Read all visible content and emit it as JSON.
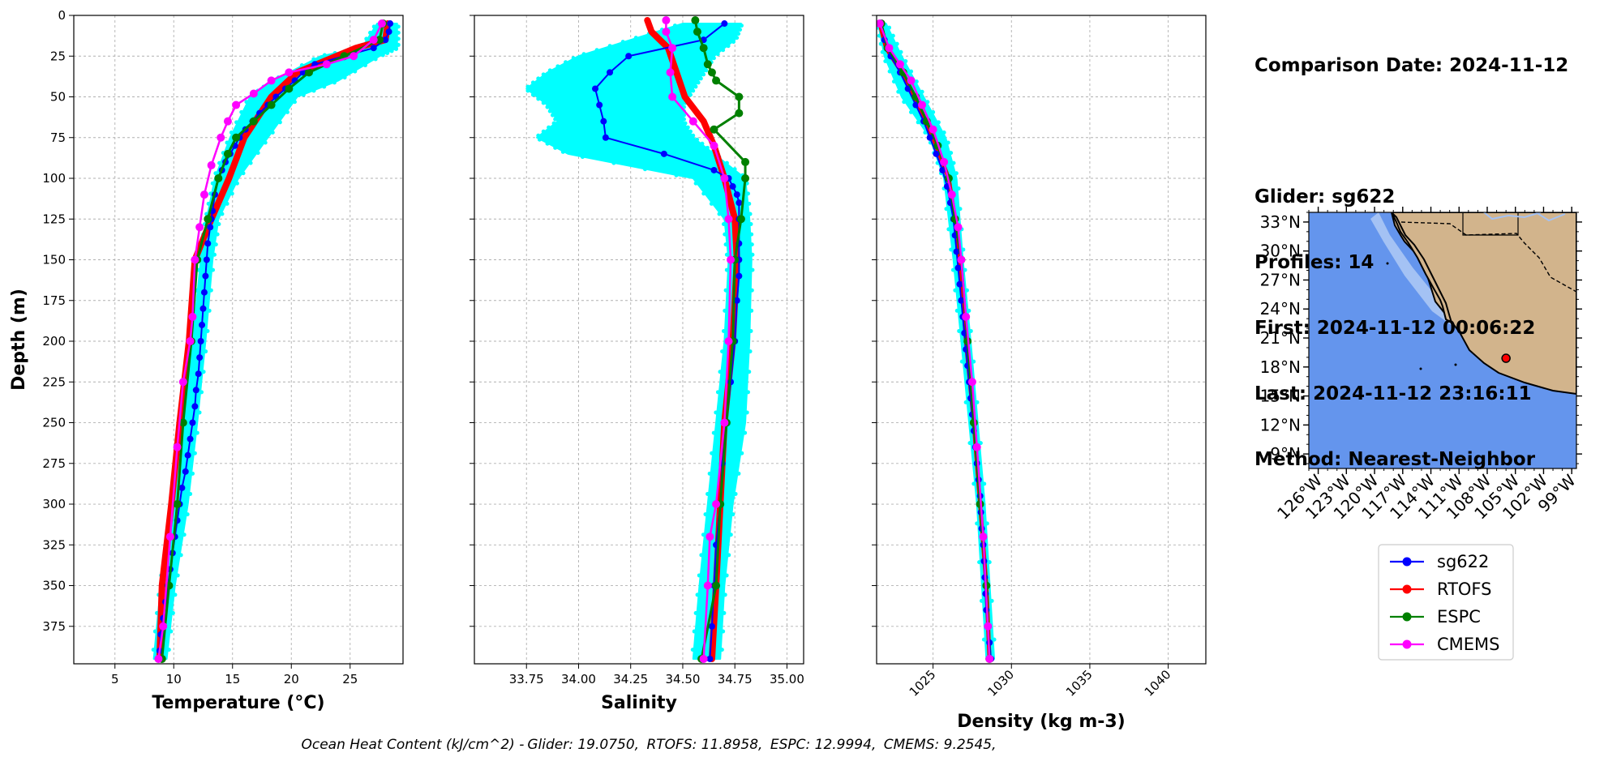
{
  "info": {
    "comparison_date": "Comparison Date: 2024-11-12",
    "glider": "Glider: sg622",
    "profiles": "Profiles: 14",
    "first": "First: 2024-11-12 00:06:22",
    "last": "Last: 2024-11-12 23:16:11",
    "method": "Method: Nearest-Neighbor"
  },
  "footer": {
    "prefix": "Ocean Heat Content (kJ/cm^2) -",
    "glider": "Glider: 19.0750,",
    "rtofs": "RTOFS: 11.8958,",
    "espc": "ESPC: 12.9994,",
    "cmems": "CMEMS: 9.2545,"
  },
  "colors": {
    "glider": "#0000ff",
    "rtofs": "#ff0000",
    "espc": "#008000",
    "cmems": "#ff00ff",
    "raw": "#00ffff",
    "ocean": "#6495ed",
    "shelf": "#a4c2f4",
    "land": "#d2b48c"
  },
  "legend": [
    "sg622",
    "RTOFS",
    "ESPC",
    "CMEMS"
  ],
  "map": {
    "lat_labels": [
      "33°N",
      "30°N",
      "27°N",
      "24°N",
      "21°N",
      "18°N",
      "15°N",
      "12°N",
      "9°N"
    ],
    "lon_labels": [
      "126°W",
      "123°W",
      "120°W",
      "117°W",
      "114°W",
      "111°W",
      "108°W",
      "105°W",
      "102°W",
      "99°W"
    ],
    "marker": {
      "lon": -106.0,
      "lat": 18.9
    }
  },
  "chart_data": [
    {
      "type": "line",
      "title": "",
      "xlabel": "Temperature (°C)",
      "ylabel": "Depth (m)",
      "xlim": [
        1.5,
        29.5
      ],
      "ylim": [
        398,
        0
      ],
      "xticks": [
        5,
        10,
        15,
        20,
        25
      ],
      "yticks": [
        0,
        25,
        50,
        75,
        100,
        125,
        150,
        175,
        200,
        225,
        250,
        275,
        300,
        325,
        350,
        375
      ],
      "raw_band": {
        "depth": [
          5,
          20,
          25,
          40,
          50,
          75,
          100,
          125,
          150,
          200,
          250,
          300,
          350,
          395
        ],
        "min": [
          27.3,
          26.0,
          22.5,
          18.5,
          16.5,
          14.8,
          13.5,
          12.8,
          12.3,
          11.6,
          10.8,
          10.0,
          8.9,
          8.3
        ],
        "max": [
          29.0,
          29.0,
          27.5,
          24.0,
          20.5,
          18.0,
          15.5,
          13.8,
          13.3,
          12.7,
          12.0,
          11.2,
          10.1,
          9.4
        ]
      },
      "series": [
        {
          "name": "RTOFS",
          "depth": [
            5,
            15,
            20,
            35,
            50,
            75,
            100,
            125,
            150,
            200,
            250,
            300,
            350,
            395
          ],
          "values": [
            28.2,
            28.0,
            25.5,
            20.5,
            18.3,
            16.0,
            14.7,
            13.2,
            11.8,
            11.3,
            10.5,
            9.8,
            9.0,
            8.8
          ],
          "width": 8,
          "markers": false
        },
        {
          "name": "sg622",
          "depth": [
            5,
            10,
            15,
            20,
            25,
            30,
            35,
            40,
            45,
            50,
            55,
            60,
            65,
            70,
            75,
            80,
            85,
            90,
            95,
            100,
            110,
            120,
            125,
            130,
            140,
            150,
            160,
            170,
            180,
            190,
            200,
            210,
            220,
            230,
            240,
            250,
            260,
            270,
            280,
            290,
            300,
            310,
            320,
            330,
            340,
            350,
            360,
            370,
            380,
            390,
            395
          ],
          "values": [
            28.4,
            28.3,
            28.0,
            27.0,
            24.5,
            22.0,
            21.0,
            20.3,
            19.5,
            18.7,
            18.0,
            17.3,
            16.7,
            16.1,
            15.6,
            15.2,
            14.8,
            14.4,
            14.1,
            13.8,
            13.5,
            13.3,
            13.2,
            13.1,
            12.9,
            12.8,
            12.7,
            12.6,
            12.5,
            12.4,
            12.3,
            12.2,
            12.1,
            11.9,
            11.8,
            11.6,
            11.4,
            11.2,
            11.0,
            10.7,
            10.5,
            10.3,
            10.1,
            9.9,
            9.7,
            9.5,
            9.3,
            9.1,
            8.9,
            8.8,
            8.7
          ],
          "width": 2,
          "markers": true
        },
        {
          "name": "ESPC",
          "depth": [
            5,
            15,
            25,
            35,
            45,
            55,
            65,
            75,
            85,
            100,
            125,
            150,
            200,
            250,
            300,
            350,
            395
          ],
          "values": [
            27.8,
            27.5,
            24.5,
            21.5,
            19.8,
            18.3,
            16.8,
            15.3,
            14.6,
            13.8,
            12.9,
            12.0,
            11.5,
            10.8,
            10.3,
            9.6,
            9.0
          ],
          "width": 3,
          "markers": true
        },
        {
          "name": "CMEMS",
          "depth": [
            5,
            15,
            25,
            30,
            35,
            40,
            48,
            55,
            65,
            75,
            92,
            110,
            130,
            150,
            185,
            200,
            225,
            265,
            320,
            375,
            395
          ],
          "values": [
            27.7,
            27.0,
            25.3,
            23.0,
            19.8,
            18.3,
            16.8,
            15.3,
            14.6,
            14.0,
            13.2,
            12.6,
            12.2,
            11.8,
            11.6,
            11.4,
            10.8,
            10.3,
            9.7,
            9.1,
            8.7
          ],
          "width": 2.5,
          "markers": true
        }
      ]
    },
    {
      "type": "line",
      "title": "",
      "xlabel": "Salinity",
      "ylabel": "",
      "xlim": [
        33.5,
        35.08
      ],
      "ylim": [
        398,
        0
      ],
      "xticks": [
        33.75,
        34.0,
        34.25,
        34.5,
        34.75,
        35.0
      ],
      "raw_band": {
        "depth": [
          5,
          15,
          25,
          35,
          45,
          55,
          65,
          75,
          85,
          100,
          125,
          150,
          200,
          250,
          300,
          350,
          395
        ],
        "min": [
          34.5,
          34.25,
          34.0,
          33.85,
          33.75,
          33.85,
          33.9,
          33.8,
          33.95,
          34.55,
          34.7,
          34.72,
          34.7,
          34.66,
          34.62,
          34.58,
          34.55
        ],
        "max": [
          34.78,
          34.75,
          34.65,
          34.6,
          34.55,
          34.5,
          34.5,
          34.55,
          34.65,
          34.8,
          34.82,
          34.83,
          34.82,
          34.8,
          34.74,
          34.7,
          34.68
        ]
      },
      "series": [
        {
          "name": "RTOFS",
          "depth": [
            3,
            10,
            20,
            35,
            50,
            65,
            80,
            100,
            125,
            150,
            200,
            250,
            300,
            350,
            395
          ],
          "values": [
            34.33,
            34.35,
            34.43,
            34.47,
            34.51,
            34.6,
            34.65,
            34.7,
            34.75,
            34.76,
            34.74,
            34.7,
            34.68,
            34.66,
            34.64
          ],
          "width": 8,
          "markers": false
        },
        {
          "name": "sg622",
          "depth": [
            5,
            15,
            25,
            35,
            45,
            55,
            65,
            75,
            85,
            95,
            100,
            105,
            110,
            115,
            125,
            140,
            150,
            160,
            175,
            200,
            225,
            250,
            275,
            300,
            325,
            350,
            375,
            395
          ],
          "values": [
            34.7,
            34.6,
            34.24,
            34.15,
            34.08,
            34.1,
            34.12,
            34.13,
            34.41,
            34.65,
            34.72,
            34.74,
            34.76,
            34.77,
            34.77,
            34.77,
            34.77,
            34.77,
            34.76,
            34.75,
            34.73,
            34.71,
            34.69,
            34.68,
            34.66,
            34.65,
            34.64,
            34.63
          ],
          "width": 2,
          "markers": true
        },
        {
          "name": "ESPC",
          "depth": [
            3,
            10,
            20,
            30,
            35,
            40,
            50,
            60,
            70,
            90,
            100,
            125,
            150,
            200,
            250,
            300,
            350,
            395
          ],
          "values": [
            34.56,
            34.57,
            34.6,
            34.62,
            34.64,
            34.66,
            34.77,
            34.77,
            34.65,
            34.8,
            34.8,
            34.78,
            34.75,
            34.74,
            34.71,
            34.68,
            34.66,
            34.59
          ],
          "width": 3,
          "markers": true
        },
        {
          "name": "CMEMS",
          "depth": [
            3,
            10,
            20,
            35,
            50,
            65,
            80,
            100,
            125,
            150,
            200,
            250,
            300,
            320,
            350,
            395
          ],
          "values": [
            34.42,
            34.42,
            34.45,
            34.44,
            34.45,
            34.55,
            34.65,
            34.7,
            34.72,
            34.73,
            34.72,
            34.7,
            34.66,
            34.63,
            34.62,
            34.6
          ],
          "width": 2.5,
          "markers": true
        }
      ]
    },
    {
      "type": "line",
      "title": "",
      "xlabel": "Density (kg m-3)",
      "ylabel": "",
      "xlim": [
        1021.4,
        1042.4
      ],
      "ylim": [
        398,
        0
      ],
      "xticks": [
        1025,
        1030,
        1035,
        1040
      ],
      "raw_band": {
        "depth": [
          5,
          25,
          50,
          75,
          100,
          150,
          200,
          300,
          395
        ],
        "min": [
          1021.5,
          1021.9,
          1023.0,
          1024.8,
          1025.7,
          1026.3,
          1026.8,
          1027.8,
          1028.4
        ],
        "max": [
          1022.0,
          1023.0,
          1024.4,
          1025.8,
          1026.5,
          1026.9,
          1027.4,
          1028.3,
          1028.9
        ]
      },
      "series": [
        {
          "name": "RTOFS",
          "depth": [
            5,
            20,
            35,
            50,
            75,
            100,
            125,
            150,
            200,
            250,
            300,
            350,
            395
          ],
          "values": [
            1021.6,
            1022.0,
            1023.0,
            1023.8,
            1025.0,
            1026.0,
            1026.4,
            1026.7,
            1027.1,
            1027.6,
            1028.0,
            1028.4,
            1028.6
          ],
          "width": 5,
          "markers": false
        },
        {
          "name": "sg622",
          "depth": [
            5,
            15,
            25,
            35,
            45,
            55,
            65,
            75,
            85,
            95,
            105,
            115,
            125,
            135,
            145,
            155,
            165,
            175,
            185,
            195,
            205,
            215,
            225,
            235,
            245,
            255,
            265,
            275,
            285,
            295,
            305,
            315,
            325,
            335,
            345,
            355,
            365,
            375,
            385,
            395
          ],
          "values": [
            1021.7,
            1021.9,
            1022.3,
            1022.9,
            1023.4,
            1023.9,
            1024.4,
            1024.8,
            1025.2,
            1025.6,
            1025.9,
            1026.1,
            1026.3,
            1026.4,
            1026.5,
            1026.6,
            1026.7,
            1026.8,
            1026.9,
            1027.0,
            1027.1,
            1027.2,
            1027.3,
            1027.4,
            1027.5,
            1027.6,
            1027.7,
            1027.8,
            1027.9,
            1028.0,
            1028.05,
            1028.1,
            1028.2,
            1028.25,
            1028.3,
            1028.35,
            1028.4,
            1028.5,
            1028.6,
            1028.7
          ],
          "width": 2,
          "markers": true
        },
        {
          "name": "ESPC",
          "depth": [
            5,
            20,
            35,
            50,
            65,
            80,
            100,
            125,
            150,
            200,
            250,
            300,
            350,
            395
          ],
          "values": [
            1021.7,
            1022.1,
            1023.1,
            1023.9,
            1024.6,
            1025.3,
            1026.0,
            1026.4,
            1026.8,
            1027.2,
            1027.6,
            1028.0,
            1028.4,
            1028.6
          ],
          "width": 3,
          "markers": true
        },
        {
          "name": "CMEMS",
          "depth": [
            5,
            20,
            30,
            40,
            55,
            70,
            90,
            110,
            130,
            150,
            185,
            225,
            265,
            320,
            375,
            395
          ],
          "values": [
            1021.6,
            1022.2,
            1022.9,
            1023.6,
            1024.3,
            1025.0,
            1025.7,
            1026.2,
            1026.6,
            1026.8,
            1027.1,
            1027.5,
            1027.8,
            1028.2,
            1028.5,
            1028.6
          ],
          "width": 2.5,
          "markers": true
        }
      ]
    }
  ]
}
